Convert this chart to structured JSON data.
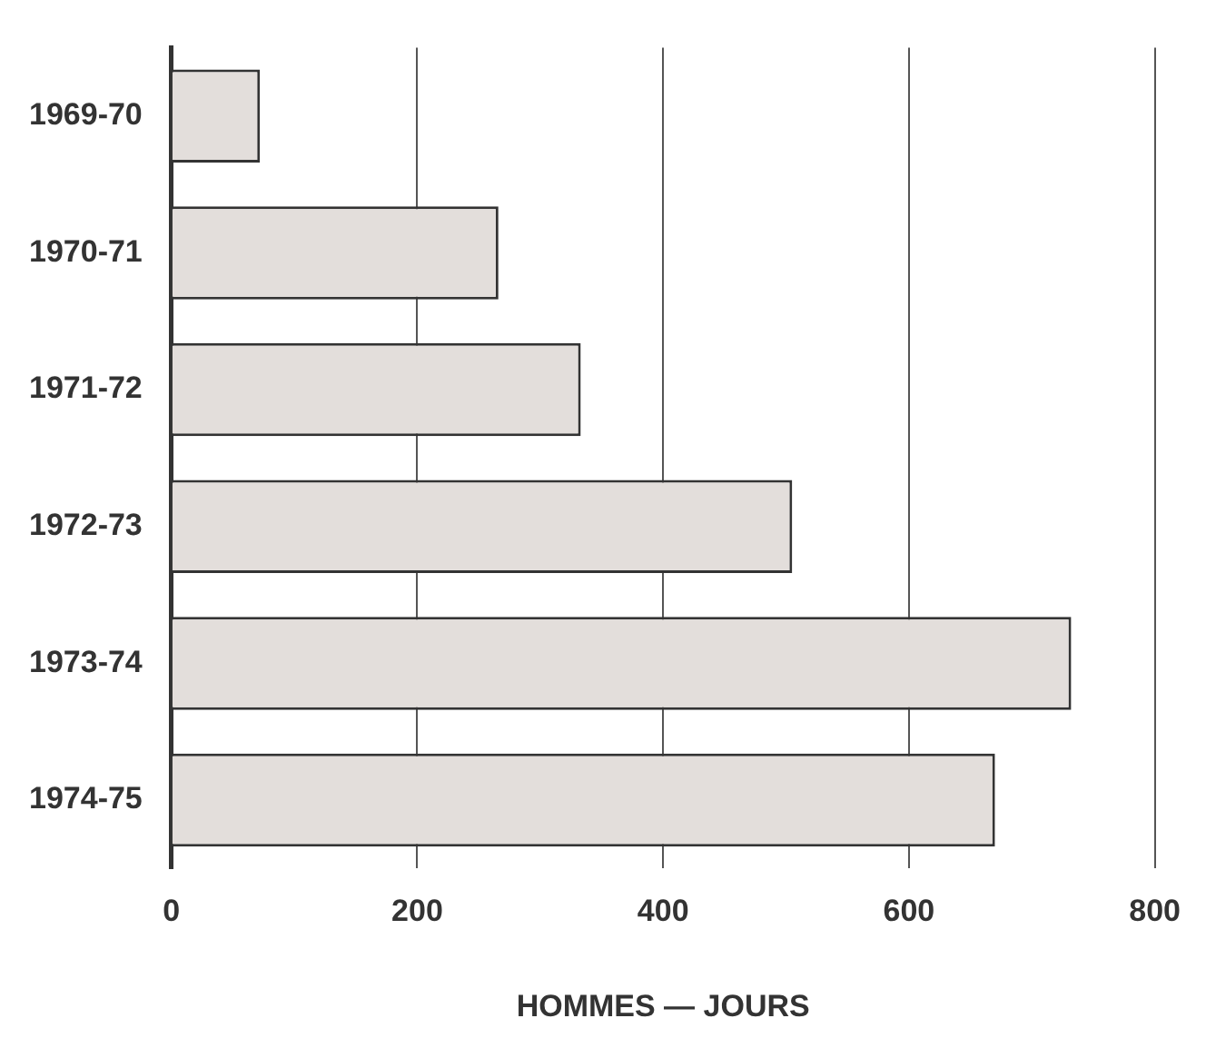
{
  "chart_data": {
    "type": "bar",
    "orientation": "horizontal",
    "xlabel": "HOMMES — JOURS",
    "categories": [
      "1969-70",
      "1970-71",
      "1971-72",
      "1972-73",
      "1973-74",
      "1974-75"
    ],
    "values": [
      72,
      266,
      333,
      505,
      732,
      670
    ],
    "color": "#e3dedb",
    "xlim": [
      0,
      800
    ],
    "xticks": [
      0,
      200,
      400,
      600,
      800
    ],
    "grid": "x",
    "legend": false
  }
}
